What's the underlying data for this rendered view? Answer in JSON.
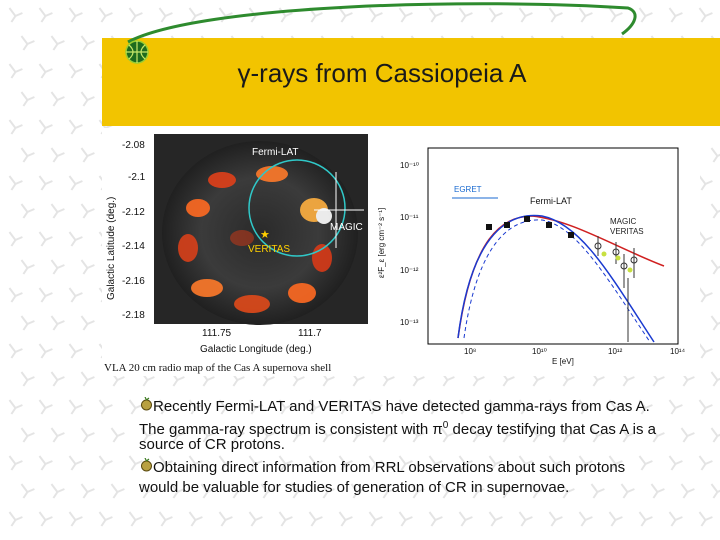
{
  "slide": {
    "title": "γ-rays from Cassiopeia A",
    "colors": {
      "band": "#f2c400",
      "deco": "#2e8b2e",
      "pattern": "#e6e6e6"
    }
  },
  "left_figure": {
    "y_ticks": [
      "-2.08",
      "-2.1",
      "-2.12",
      "-2.14",
      "-2.16",
      "-2.18"
    ],
    "x_ticks": [
      "111.75",
      "111.7"
    ],
    "ylabel": "Galactic Latitude (deg.)",
    "xlabel": "Galactic Longitude (deg.)",
    "labels": {
      "fermi": "Fermi-LAT",
      "magic": "MAGIC",
      "veritas": "VERITAS"
    },
    "caption": "VLA 20 cm radio map of the Cas A supernova shell"
  },
  "right_figure": {
    "y_ticks": [
      "10⁻¹⁰",
      "10⁻¹¹",
      "10⁻¹²",
      "10⁻¹³"
    ],
    "x_ticks": [
      "10⁸",
      "10¹⁰",
      "10¹²",
      "10¹⁴"
    ],
    "ylabel": "ε²F_ε [erg cm⁻² s⁻¹]",
    "xlabel": "E [eV]",
    "legend": {
      "egret": "EGRET",
      "fermi": "Fermi-LAT",
      "magic": "MAGIC",
      "veritas": "VERITAS"
    }
  },
  "body": {
    "p1_a": "Recently Fermi-LAT and VERITAS have detected gamma-rays from Cas A.",
    "p1_b_pre": "The gamma-ray spectrum is consistent with π",
    "p1_b_sup": "0",
    "p1_b_post": " decay testifying that Cas A is a",
    "p1_c": "source of CR protons.",
    "p2_a": "Obtaining direct information from RRL observations about such protons",
    "p2_b": "would be valuable for studies of generation of CR in supernovae."
  }
}
